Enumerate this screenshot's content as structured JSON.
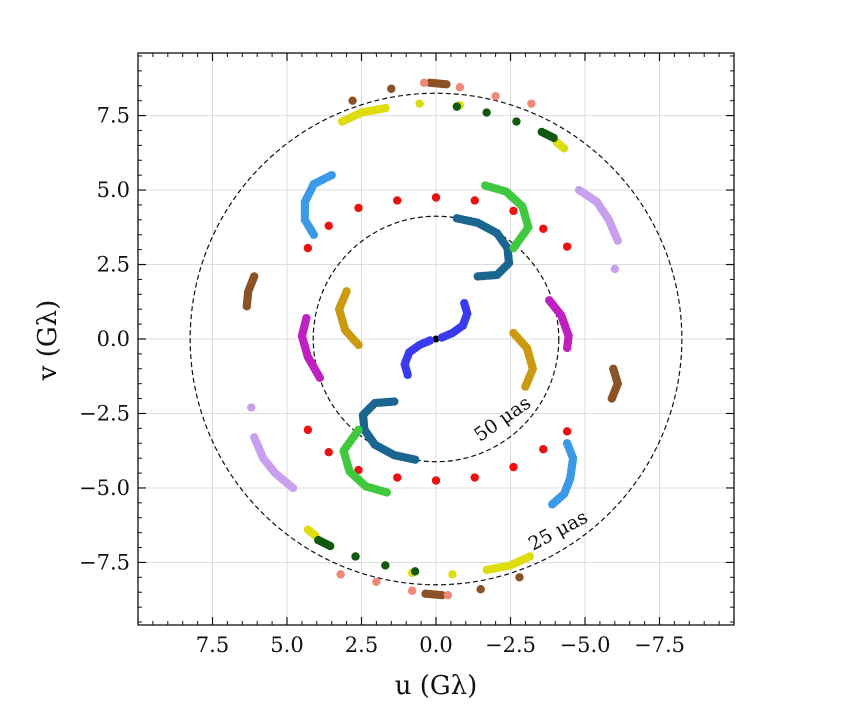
{
  "chart_data": {
    "type": "scatter",
    "xlabel": "u (Gλ)",
    "ylabel": "v (Gλ)",
    "xlim": [
      10,
      -10
    ],
    "ylim": [
      -9.6,
      9.6
    ],
    "x_ticks": [
      7.5,
      5.0,
      2.5,
      0.0,
      -2.5,
      -5.0,
      -7.5
    ],
    "x_tick_labels": [
      "7.5",
      "5.0",
      "2.5",
      "0.0",
      "−2.5",
      "−5.0",
      "−7.5"
    ],
    "y_ticks": [
      7.5,
      5.0,
      2.5,
      0.0,
      -2.5,
      -5.0,
      -7.5
    ],
    "y_tick_labels": [
      "7.5",
      "5.0",
      "2.5",
      "0.0",
      "−2.5",
      "−5.0",
      "−7.5"
    ],
    "grid": true,
    "rings": [
      {
        "radius": 8.25,
        "label": "25 μas"
      },
      {
        "radius": 4.12,
        "label": "50 μas"
      }
    ],
    "series": [
      {
        "color": "#000000",
        "points": [
          [
            0,
            0
          ]
        ]
      },
      {
        "color": "#3a3aee",
        "points": [
          [
            -0.95,
            1.2
          ],
          [
            -1.05,
            0.85
          ],
          [
            -0.9,
            0.45
          ],
          [
            -0.55,
            0.2
          ],
          [
            -0.2,
            0.05
          ],
          [
            0.95,
            -1.2
          ],
          [
            1.05,
            -0.85
          ],
          [
            0.9,
            -0.45
          ],
          [
            0.55,
            -0.2
          ],
          [
            0.2,
            -0.05
          ]
        ]
      },
      {
        "color": "#cc9a10",
        "points": [
          [
            3.0,
            1.6
          ],
          [
            3.25,
            1.0
          ],
          [
            3.05,
            0.3
          ],
          [
            2.6,
            -0.2
          ],
          [
            -3.0,
            -1.6
          ],
          [
            -3.25,
            -1.0
          ],
          [
            -3.05,
            -0.3
          ],
          [
            -2.6,
            0.2
          ]
        ]
      },
      {
        "color": "#c020c0",
        "points": [
          [
            4.35,
            0.7
          ],
          [
            4.5,
            0.1
          ],
          [
            4.3,
            -0.6
          ],
          [
            3.9,
            -1.3
          ],
          [
            -3.8,
            1.3
          ],
          [
            -4.2,
            0.8
          ],
          [
            -4.45,
            0.1
          ],
          [
            -4.4,
            -0.3
          ]
        ]
      },
      {
        "color": "#1a6690",
        "points": [
          [
            -0.7,
            4.05
          ],
          [
            -1.4,
            3.9
          ],
          [
            -2.05,
            3.55
          ],
          [
            -2.4,
            3.05
          ],
          [
            -2.45,
            2.55
          ],
          [
            -2.05,
            2.15
          ],
          [
            -1.4,
            2.1
          ],
          [
            0.7,
            -4.05
          ],
          [
            1.4,
            -3.9
          ],
          [
            2.05,
            -3.55
          ],
          [
            2.4,
            -3.05
          ],
          [
            2.45,
            -2.55
          ],
          [
            2.05,
            -2.15
          ],
          [
            1.4,
            -2.1
          ]
        ]
      },
      {
        "color": "#ee1111",
        "points": [
          [
            4.3,
            3.05
          ],
          [
            3.6,
            3.8
          ],
          [
            2.6,
            4.4
          ],
          [
            1.3,
            4.65
          ],
          [
            0,
            4.75
          ],
          [
            -1.3,
            4.65
          ],
          [
            -2.6,
            4.3
          ],
          [
            -3.6,
            3.7
          ],
          [
            -4.4,
            3.1
          ],
          [
            4.3,
            -3.05
          ],
          [
            3.6,
            -3.8
          ],
          [
            2.6,
            -4.4
          ],
          [
            1.3,
            -4.65
          ],
          [
            0,
            -4.75
          ],
          [
            -1.3,
            -4.65
          ],
          [
            -2.6,
            -4.3
          ],
          [
            -3.6,
            -3.7
          ],
          [
            -4.4,
            -3.1
          ]
        ]
      },
      {
        "color": "#40c840",
        "points": [
          [
            -1.65,
            5.15
          ],
          [
            -2.35,
            4.95
          ],
          [
            -2.9,
            4.45
          ],
          [
            -3.1,
            3.75
          ],
          [
            -2.6,
            3.05
          ],
          [
            1.65,
            -5.15
          ],
          [
            2.35,
            -4.95
          ],
          [
            2.9,
            -4.45
          ],
          [
            3.1,
            -3.75
          ],
          [
            2.6,
            -3.05
          ]
        ]
      },
      {
        "color": "#3b9ae8",
        "points": [
          [
            3.5,
            5.5
          ],
          [
            4.1,
            5.2
          ],
          [
            4.4,
            4.6
          ],
          [
            4.4,
            4.0
          ],
          [
            4.1,
            3.5
          ],
          [
            -4.4,
            -3.5
          ],
          [
            -4.6,
            -4.0
          ],
          [
            -4.5,
            -4.7
          ],
          [
            -4.3,
            -5.2
          ],
          [
            -3.9,
            -5.55
          ]
        ]
      },
      {
        "color": "#c8a0ee",
        "points": [
          [
            -4.8,
            5.0
          ],
          [
            -5.4,
            4.6
          ],
          [
            -5.8,
            4.0
          ],
          [
            -6.1,
            3.3
          ],
          [
            -6.0,
            2.35
          ],
          [
            6.2,
            -2.3
          ],
          [
            6.1,
            -3.3
          ],
          [
            5.8,
            -4.0
          ],
          [
            5.4,
            -4.5
          ],
          [
            4.8,
            -5.0
          ]
        ]
      },
      {
        "color": "#8b5226",
        "points": [
          [
            6.1,
            2.1
          ],
          [
            6.3,
            1.6
          ],
          [
            6.35,
            1.1
          ],
          [
            -5.95,
            -1.0
          ],
          [
            -6.1,
            -1.5
          ],
          [
            -5.9,
            -2.0
          ],
          [
            2.8,
            8.0
          ],
          [
            1.5,
            8.4
          ],
          [
            0.2,
            8.6
          ],
          [
            -0.35,
            8.55
          ],
          [
            -2.8,
            -8.0
          ],
          [
            -1.5,
            -8.4
          ],
          [
            -0.2,
            -8.6
          ],
          [
            0.35,
            -8.55
          ]
        ]
      },
      {
        "color": "#f08878",
        "points": [
          [
            0.4,
            8.6
          ],
          [
            -0.8,
            8.45
          ],
          [
            -2.0,
            8.15
          ],
          [
            -3.2,
            7.9
          ],
          [
            -0.4,
            -8.6
          ],
          [
            0.8,
            -8.45
          ],
          [
            2.0,
            -8.15
          ],
          [
            3.2,
            -7.9
          ]
        ]
      },
      {
        "color": "#dddd10",
        "points": [
          [
            3.15,
            7.3
          ],
          [
            2.5,
            7.6
          ],
          [
            1.7,
            7.75
          ],
          [
            0.55,
            7.9
          ],
          [
            -0.8,
            7.85
          ],
          [
            -4.3,
            6.4
          ],
          [
            -4.05,
            6.6
          ],
          [
            4.3,
            -6.4
          ],
          [
            4.05,
            -6.6
          ],
          [
            -3.15,
            -7.3
          ],
          [
            -2.5,
            -7.6
          ],
          [
            -1.7,
            -7.75
          ],
          [
            -0.55,
            -7.9
          ],
          [
            0.8,
            -7.85
          ]
        ]
      },
      {
        "color": "#10590f",
        "points": [
          [
            -0.7,
            7.8
          ],
          [
            -1.7,
            7.6
          ],
          [
            -2.7,
            7.3
          ],
          [
            -3.55,
            6.95
          ],
          [
            -3.95,
            6.75
          ],
          [
            0.7,
            -7.8
          ],
          [
            1.7,
            -7.6
          ],
          [
            2.7,
            -7.3
          ],
          [
            3.55,
            -6.95
          ],
          [
            3.95,
            -6.75
          ]
        ]
      }
    ]
  }
}
